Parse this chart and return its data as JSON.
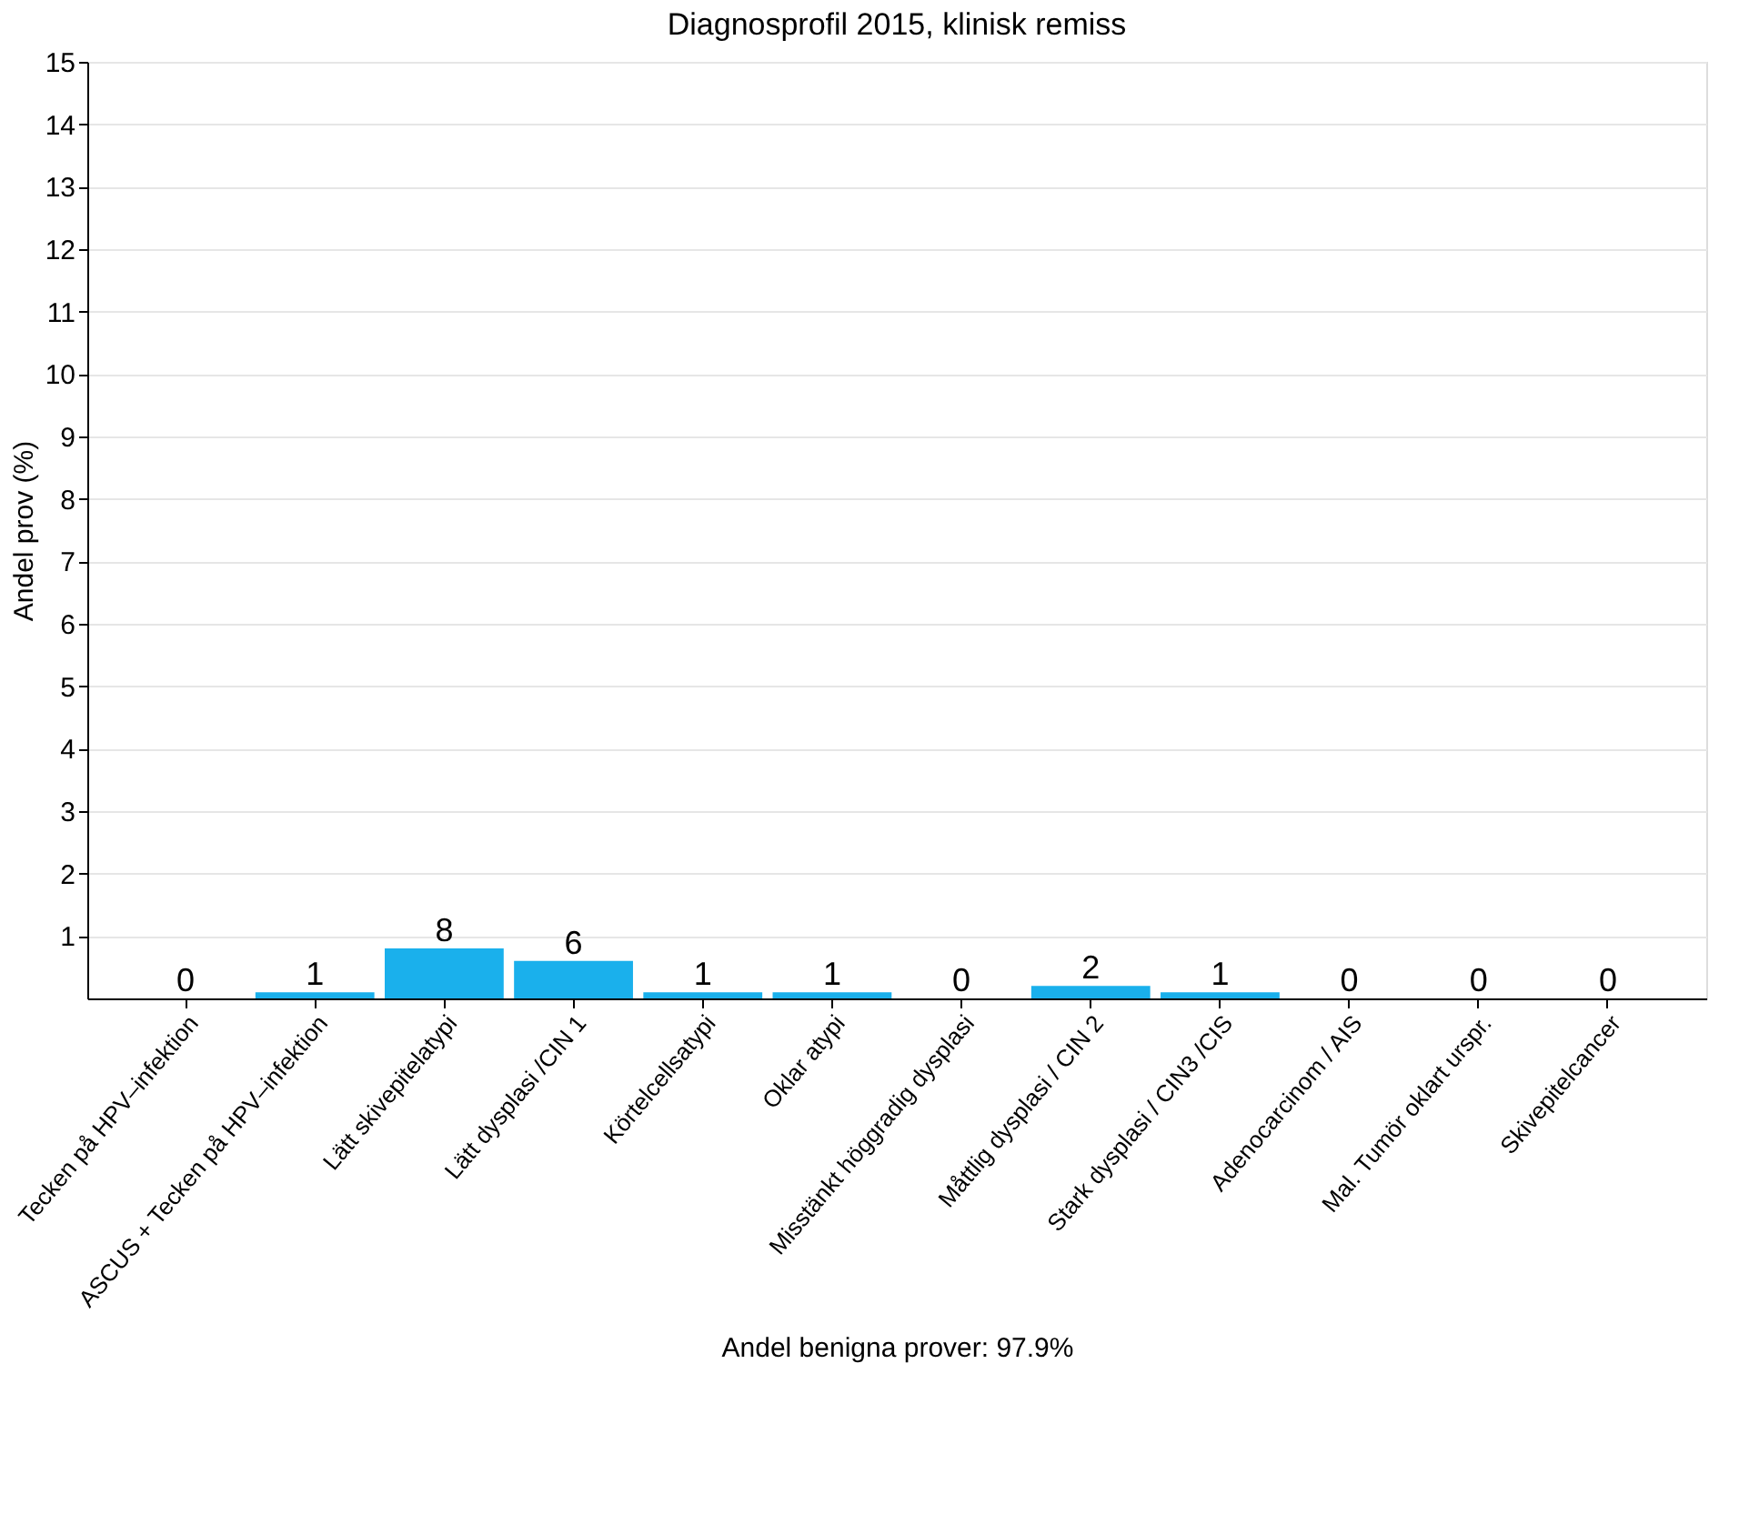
{
  "chart_data": {
    "type": "bar",
    "title": "Diagnosprofil 2015, klinisk remiss",
    "ylabel": "Andel prov (%)",
    "xlabel": "Andel benigna prover: 97.9%",
    "categories": [
      "Tecken på HPV–infektion",
      "ASCUS + Tecken på HPV–infektion",
      "Lätt skivepitelatypi",
      "Lätt dysplasi /CIN 1",
      "Körtelcellsatypi",
      "Oklar atypi",
      "Misstänkt höggradig dysplasi",
      "Måttlig dysplasi / CIN 2",
      "Stark dysplasi / CIN3 /CIS",
      "Adenocarcinom / AIS",
      "Mal. Tumör oklart urspr.",
      "Skivepitelcancer"
    ],
    "values": [
      0,
      0.1,
      0.8,
      0.6,
      0.1,
      0.1,
      0,
      0.2,
      0.1,
      0,
      0,
      0
    ],
    "annotations": [
      {
        "text": "0",
        "x": "Tecken på HPV–infektion",
        "y": 0
      },
      {
        "text": "1",
        "x": "ASCUS + Tecken på HPV–infektion",
        "y": 0.1
      },
      {
        "text": "8",
        "x": "Lätt skivepitelatypi",
        "y": 0.8
      },
      {
        "text": "6",
        "x": "Lätt dysplasi /CIN 1",
        "y": 0.6
      },
      {
        "text": "1",
        "x": "Körtelcellsatypi",
        "y": 0.1
      },
      {
        "text": "1",
        "x": "Oklar atypi",
        "y": 0.1
      },
      {
        "text": "0",
        "x": "Misstänkt höggradig dysplasi",
        "y": 0
      },
      {
        "text": "2",
        "x": "Måttlig dysplasi / CIN 2",
        "y": 0.2
      },
      {
        "text": "1",
        "x": "Stark dysplasi / CIN3 /CIS",
        "y": 0.1
      },
      {
        "text": "0",
        "x": "Adenocarcinom / AIS",
        "y": 0
      },
      {
        "text": "0",
        "x": "Mal. Tumör oklart urspr.",
        "y": 0
      },
      {
        "text": "0",
        "x": "Skivepitelcancer",
        "y": 0
      }
    ],
    "color": "#1ab0ec",
    "ylim": [
      0,
      15
    ],
    "yticks": [
      1,
      2,
      3,
      4,
      5,
      6,
      7,
      8,
      9,
      10,
      11,
      12,
      13,
      14,
      15
    ],
    "grid": "y"
  }
}
